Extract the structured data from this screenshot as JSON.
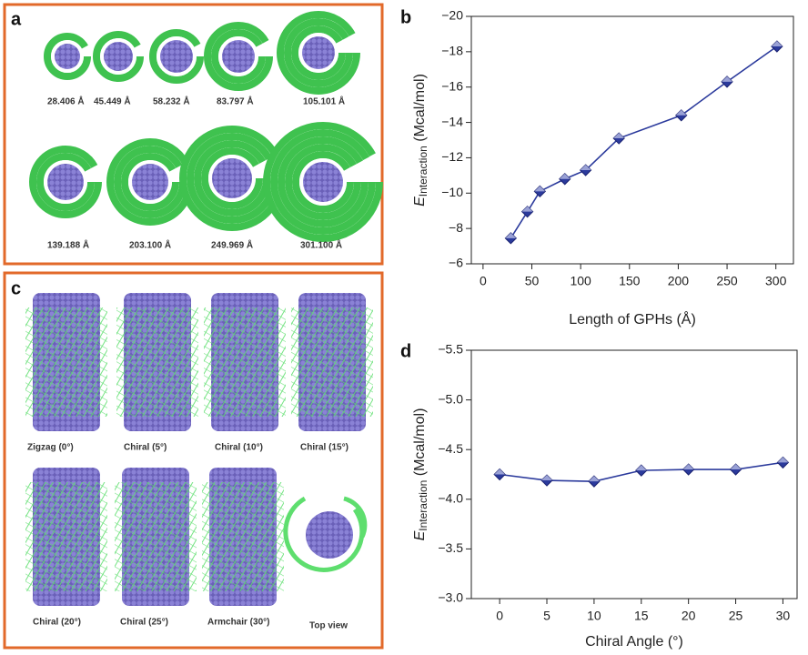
{
  "panels": [
    {
      "label": "a",
      "captions": [
        "28.406 Å",
        "45.449 Å",
        "58.232 Å",
        "83.797 Å",
        "105.101 Å",
        "139.188 Å",
        "203.100 Å",
        "249.969 Å",
        "301.100 Å"
      ]
    },
    {
      "label": "c",
      "captions": [
        "Zigzag (0°)",
        "Chiral (5°)",
        "Chiral (10°)",
        "Chiral (15°)",
        "Chiral (20°)",
        "Chiral (25°)",
        "Armchair (30°)",
        "Top view"
      ]
    }
  ],
  "chart_data": [
    {
      "type": "line",
      "panel_label": "b",
      "x": [
        28.406,
        45.449,
        58.232,
        83.797,
        105.101,
        139.188,
        203.1,
        249.969,
        301.1
      ],
      "series": [
        {
          "color": "#2b3a9c",
          "values": [
            -7.45,
            -8.95,
            -10.1,
            -10.8,
            -11.3,
            -13.1,
            -14.4,
            -16.3,
            -18.3
          ]
        }
      ],
      "xlim": [
        -12,
        318
      ],
      "xticks": [
        0,
        50,
        100,
        150,
        200,
        250,
        300
      ],
      "ylim": [
        -6,
        -20
      ],
      "yticks": [
        {
          "value": -20,
          "label": "−20"
        },
        {
          "value": -18,
          "label": "−18"
        },
        {
          "value": -16,
          "label": "−16"
        },
        {
          "value": -14,
          "label": "−14"
        },
        {
          "value": -12,
          "label": "−12"
        },
        {
          "value": -10,
          "label": "−10"
        },
        {
          "value": -8,
          "label": "−8"
        },
        {
          "value": -6,
          "label": "−6"
        }
      ],
      "ylabel_symbol": "E",
      "ylabel_subscript": "Interaction",
      "ylabel_unit": " (Mcal/mol)",
      "xlabel": "Length of GPHs (Å)"
    },
    {
      "type": "line",
      "panel_label": "d",
      "x": [
        0,
        5,
        10,
        15,
        20,
        25,
        30
      ],
      "series": [
        {
          "color": "#2b3a9c",
          "values": [
            -4.25,
            -4.19,
            -4.18,
            -4.29,
            -4.3,
            -4.3,
            -4.37
          ]
        }
      ],
      "xlim": [
        -3,
        31.5
      ],
      "xticks": [
        0,
        5,
        10,
        15,
        20,
        25,
        30
      ],
      "ylim": [
        -3,
        -5.5
      ],
      "yticks": [
        {
          "value": -5.5,
          "label": "−5.5"
        },
        {
          "value": -5,
          "label": "−5.0"
        },
        {
          "value": -4.5,
          "label": "−4.5"
        },
        {
          "value": -4,
          "label": "−4.0"
        },
        {
          "value": -3.5,
          "label": "−3.5"
        },
        {
          "value": -3,
          "label": "−3.0"
        }
      ],
      "ylabel_symbol": "E",
      "ylabel_subscript": "Interaction",
      "ylabel_unit": " (Mcal/mol)",
      "xlabel": "Chiral Angle (°)"
    }
  ]
}
